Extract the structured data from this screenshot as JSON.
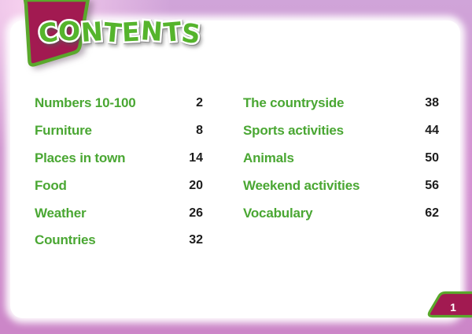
{
  "page": {
    "title": "CONTENTS",
    "page_number": "1"
  },
  "toc": {
    "left": [
      {
        "label": "Numbers 10-100",
        "page": "2"
      },
      {
        "label": "Furniture",
        "page": "8"
      },
      {
        "label": "Places in town",
        "page": "14"
      },
      {
        "label": "Food",
        "page": "20"
      },
      {
        "label": "Weather",
        "page": "26"
      },
      {
        "label": "Countries",
        "page": "32"
      }
    ],
    "right": [
      {
        "label": "The countryside",
        "page": "38"
      },
      {
        "label": "Sports activities",
        "page": "44"
      },
      {
        "label": "Animals",
        "page": "50"
      },
      {
        "label": "Weekend activities",
        "page": "56"
      },
      {
        "label": "Vocabulary",
        "page": "62"
      }
    ]
  },
  "colors": {
    "toc_green": "#4aa733",
    "title_green": "#55b42c",
    "accent_green_border": "#5aa82c",
    "banner_magenta": "#a21a51",
    "page_number_dark": "#1d1d1d",
    "frame_pink": "#cc86c8",
    "frame_pink_top": "#d0a4d9",
    "frame_pink_light": "#e9c4e4"
  }
}
